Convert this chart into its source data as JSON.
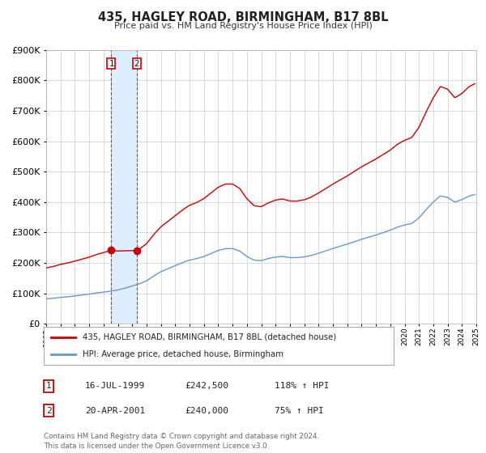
{
  "title": "435, HAGLEY ROAD, BIRMINGHAM, B17 8BL",
  "subtitle": "Price paid vs. HM Land Registry's House Price Index (HPI)",
  "legend_line1": "435, HAGLEY ROAD, BIRMINGHAM, B17 8BL (detached house)",
  "legend_line2": "HPI: Average price, detached house, Birmingham",
  "transaction1": {
    "label": "1",
    "date": "16-JUL-1999",
    "price": "£242,500",
    "hpi": "118% ↑ HPI"
  },
  "transaction2": {
    "label": "2",
    "date": "20-APR-2001",
    "price": "£240,000",
    "hpi": "75% ↑ HPI"
  },
  "footnote": "Contains HM Land Registry data © Crown copyright and database right 2024.\nThis data is licensed under the Open Government Licence v3.0.",
  "red_color": "#cc0000",
  "blue_color": "#6699cc",
  "highlight_color": "#ddeeff",
  "grid_color": "#cccccc",
  "background_color": "#ffffff",
  "trans1_x": 1999.54,
  "trans2_x": 2001.3,
  "trans1_y": 242500,
  "trans2_y": 240000,
  "ylim": [
    0,
    900000
  ],
  "xlim": [
    1995,
    2025
  ],
  "blue_key_x": [
    1995.0,
    1995.5,
    1996.0,
    1996.5,
    1997.0,
    1997.5,
    1998.0,
    1998.5,
    1999.0,
    1999.5,
    2000.0,
    2000.5,
    2001.0,
    2001.5,
    2002.0,
    2002.5,
    2003.0,
    2003.5,
    2004.0,
    2004.5,
    2005.0,
    2005.5,
    2006.0,
    2006.5,
    2007.0,
    2007.5,
    2008.0,
    2008.5,
    2009.0,
    2009.5,
    2010.0,
    2010.5,
    2011.0,
    2011.5,
    2012.0,
    2012.5,
    2013.0,
    2013.5,
    2014.0,
    2014.5,
    2015.0,
    2015.5,
    2016.0,
    2016.5,
    2017.0,
    2017.5,
    2018.0,
    2018.5,
    2019.0,
    2019.5,
    2020.0,
    2020.5,
    2021.0,
    2021.5,
    2022.0,
    2022.5,
    2023.0,
    2023.5,
    2024.0,
    2024.5,
    2024.9
  ],
  "blue_key_y": [
    82000,
    84000,
    87000,
    89000,
    92000,
    95000,
    98000,
    102000,
    105000,
    108000,
    112000,
    118000,
    125000,
    132000,
    142000,
    158000,
    172000,
    182000,
    192000,
    202000,
    210000,
    215000,
    222000,
    232000,
    242000,
    248000,
    248000,
    240000,
    222000,
    210000,
    208000,
    215000,
    220000,
    222000,
    218000,
    218000,
    220000,
    225000,
    232000,
    240000,
    248000,
    255000,
    262000,
    270000,
    278000,
    285000,
    292000,
    300000,
    308000,
    318000,
    325000,
    330000,
    348000,
    375000,
    400000,
    420000,
    415000,
    400000,
    408000,
    420000,
    425000
  ],
  "red_scale1": 2.245,
  "red_scale2": 1.818
}
